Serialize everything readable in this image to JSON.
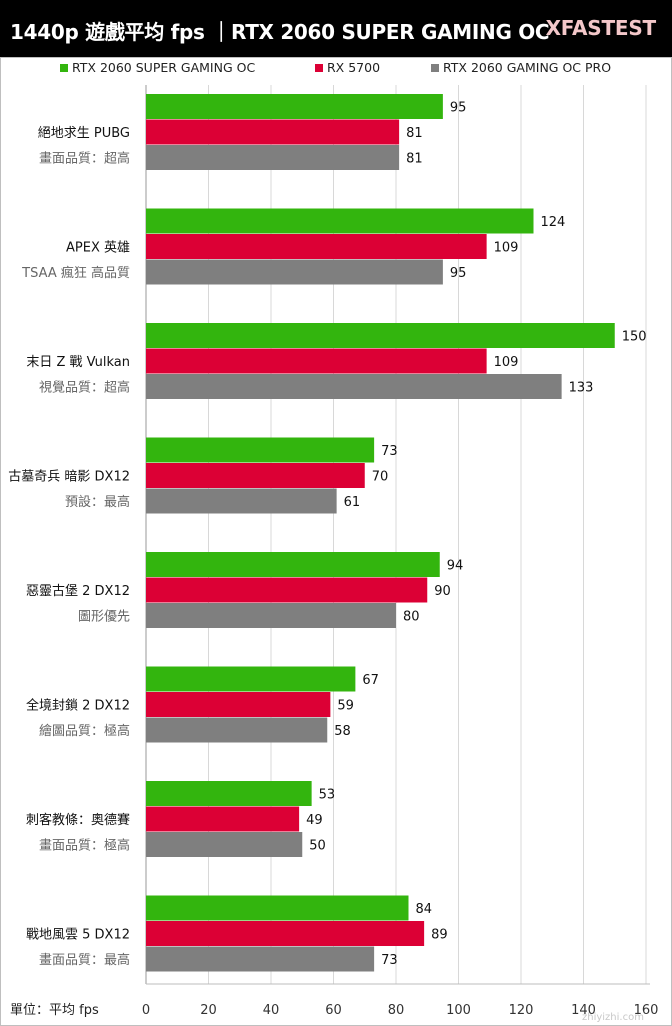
{
  "header": {
    "title": "1440p 遊戲平均 fps ｜RTX 2060 SUPER GAMING OC",
    "brand": "XFASTEST"
  },
  "unit_label": "單位：平均 fps",
  "watermark": "zhiyizhi.com",
  "colors": {
    "series": [
      "#33b50e",
      "#dc0035",
      "#7f7f7f"
    ],
    "grid": "#d8d8d8",
    "frame": "#bfbfbf",
    "header_bg": "#000000"
  },
  "chart_data": {
    "type": "bar",
    "orientation": "horizontal",
    "categories": [
      {
        "name": "絕地求生 PUBG",
        "setting": "畫面品質：超高"
      },
      {
        "name": "APEX 英雄",
        "setting": "TSAA 瘋狂 高品質"
      },
      {
        "name": "末日 Z 戰 Vulkan",
        "setting": "視覺品質：超高"
      },
      {
        "name": "古墓奇兵 暗影 DX12",
        "setting": "預設：最高"
      },
      {
        "name": "惡靈古堡 2 DX12",
        "setting": "圖形優先"
      },
      {
        "name": "全境封鎖 2 DX12",
        "setting": "繪圖品質：極高"
      },
      {
        "name": "刺客教條：奧德賽",
        "setting": "畫面品質：極高"
      },
      {
        "name": "戰地風雲 5 DX12",
        "setting": "畫面品質：最高"
      }
    ],
    "series": [
      {
        "name": "RTX 2060 SUPER GAMING OC",
        "values": [
          95,
          124,
          150,
          73,
          94,
          67,
          53,
          84
        ]
      },
      {
        "name": "RX 5700",
        "values": [
          81,
          109,
          109,
          70,
          90,
          59,
          49,
          89
        ]
      },
      {
        "name": "RTX 2060 GAMING OC PRO",
        "values": [
          81,
          95,
          133,
          61,
          80,
          58,
          50,
          73
        ]
      }
    ],
    "xlim": [
      0,
      160
    ],
    "xticks": [
      0,
      20,
      40,
      60,
      80,
      100,
      120,
      140,
      160
    ],
    "grid": true,
    "legend_position": "top"
  }
}
